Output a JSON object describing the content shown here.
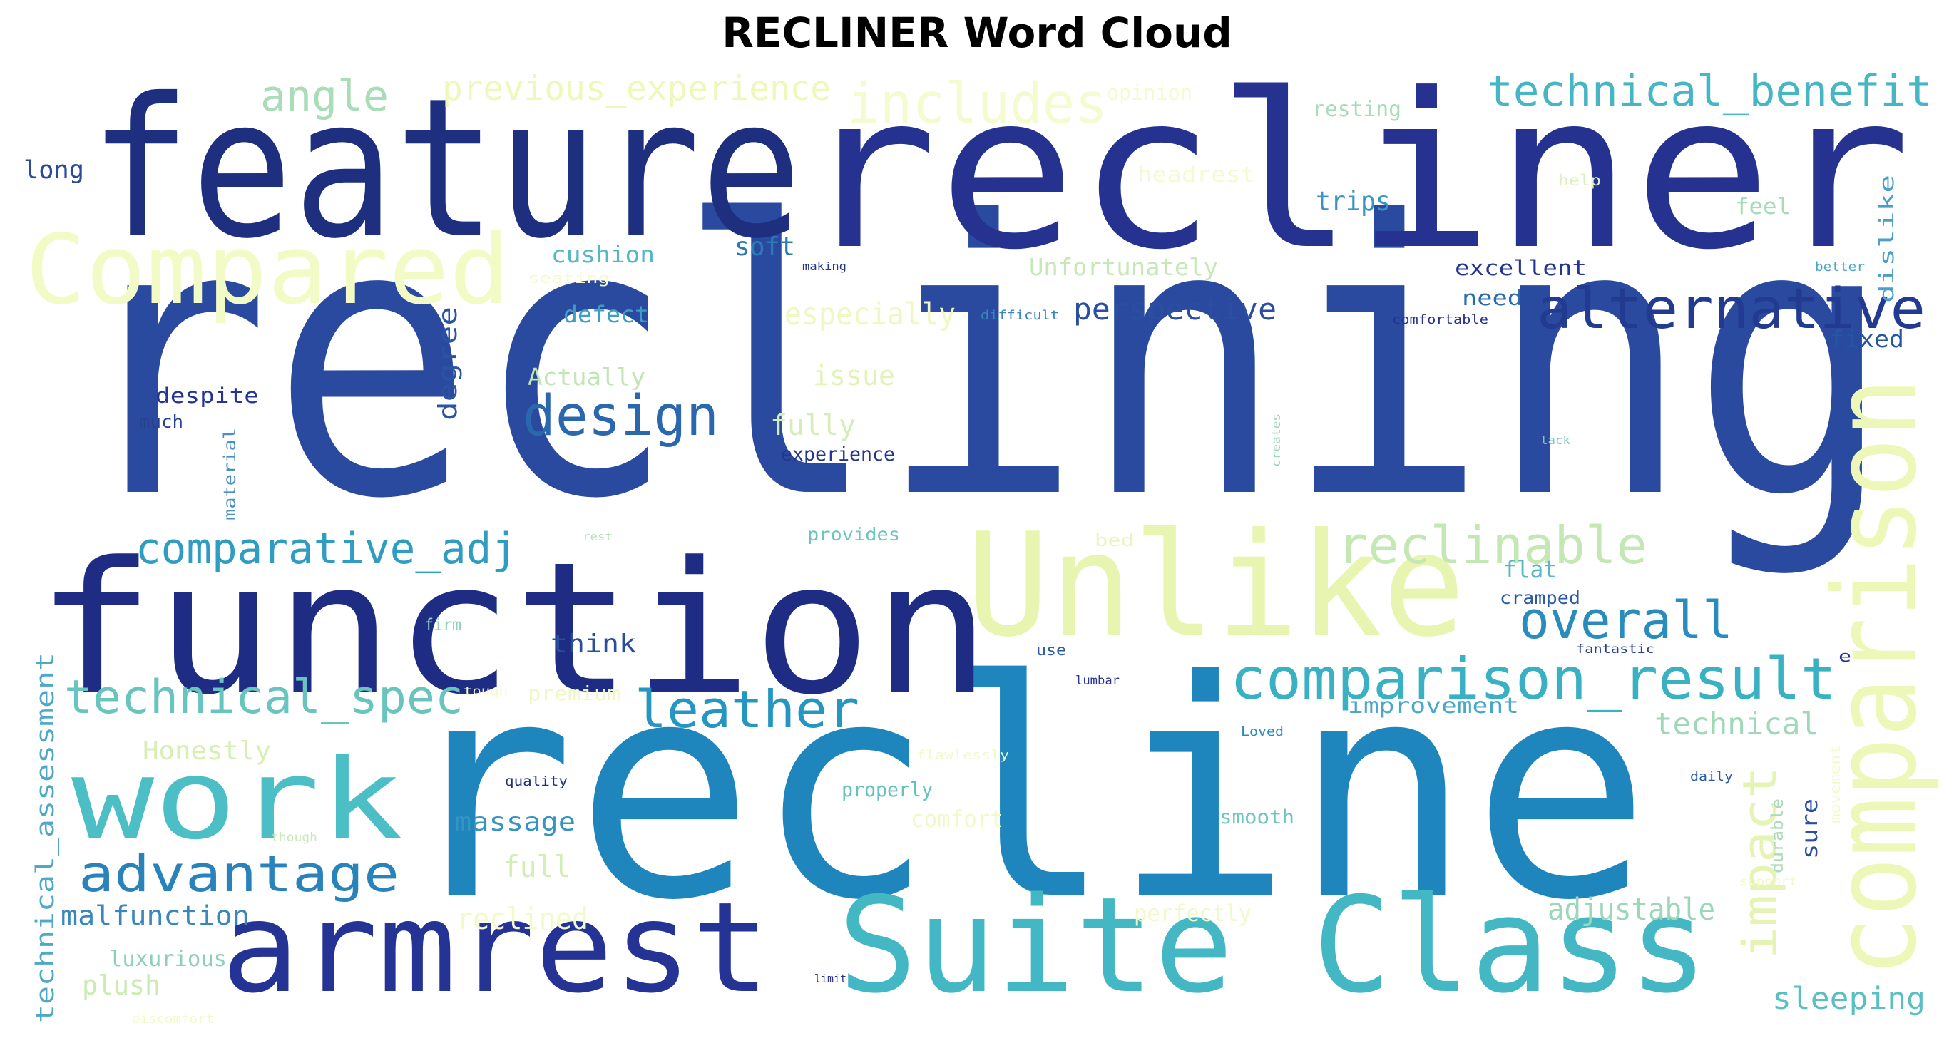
{
  "title": "RECLINER Word Cloud",
  "words": [
    {
      "text": "reclining",
      "color": "#2a4aa0"
    },
    {
      "text": "recline",
      "color": "#1f86bd"
    },
    {
      "text": "recliner",
      "color": "#25328f"
    },
    {
      "text": "feature",
      "color": "#1e2f80"
    },
    {
      "text": "function",
      "color": "#1e2c84"
    },
    {
      "text": "Unlike",
      "color": "#e8f5b0"
    },
    {
      "text": "Suite Class",
      "color": "#43b8c4"
    },
    {
      "text": "armrest",
      "color": "#253494"
    },
    {
      "text": "work",
      "color": "#4cbec5"
    },
    {
      "text": "comparison",
      "color": "#edf8b8"
    },
    {
      "text": "Compared",
      "color": "#f2fbc5"
    },
    {
      "text": "comparison_result",
      "color": "#3ab1c3"
    },
    {
      "text": "alternative",
      "color": "#223a8f"
    },
    {
      "text": "design",
      "color": "#2a67ac"
    },
    {
      "text": "includes",
      "color": "#f4fbcf"
    },
    {
      "text": "technical_benefit",
      "color": "#47b6c4"
    },
    {
      "text": "angle",
      "color": "#a9ddb7"
    },
    {
      "text": "previous_experience",
      "color": "#eef8ba"
    },
    {
      "text": "reclinable",
      "color": "#c4e8b4"
    },
    {
      "text": "overall",
      "color": "#2a8bbd"
    },
    {
      "text": "comparative_adj",
      "color": "#2f9cc2"
    },
    {
      "text": "technical_spec",
      "color": "#68c4be"
    },
    {
      "text": "leather",
      "color": "#2496c1"
    },
    {
      "text": "advantage",
      "color": "#2a82bb"
    },
    {
      "text": "impact",
      "color": "#e5f4b4"
    },
    {
      "text": "technical",
      "color": "#9ed8b8"
    },
    {
      "text": "technical_assessment",
      "color": "#4fa8c8"
    },
    {
      "text": "sleeping",
      "color": "#5bbfc1"
    },
    {
      "text": "adjustable",
      "color": "#9cd7b9"
    },
    {
      "text": "malfunction",
      "color": "#3a86bd"
    },
    {
      "text": "massage",
      "color": "#3694c2"
    },
    {
      "text": "full",
      "color": "#d2eeb5"
    },
    {
      "text": "reclined",
      "color": "#f2fac9"
    },
    {
      "text": "Honestly",
      "color": "#d6efb4"
    },
    {
      "text": "luxurious",
      "color": "#8ccfbb"
    },
    {
      "text": "plush",
      "color": "#cdeab3"
    },
    {
      "text": "perspective",
      "color": "#2a4fa0"
    },
    {
      "text": "cushion",
      "color": "#53b7c4"
    },
    {
      "text": "soft",
      "color": "#2b7ab6"
    },
    {
      "text": "Unfortunately",
      "color": "#c5e8b6"
    },
    {
      "text": "especially",
      "color": "#eff8c3"
    },
    {
      "text": "defect",
      "color": "#3e9ec4"
    },
    {
      "text": "Actually",
      "color": "#c1e6b6"
    },
    {
      "text": "issue",
      "color": "#e2f3b9"
    },
    {
      "text": "fully",
      "color": "#d4eeb8"
    },
    {
      "text": "experience",
      "color": "#26368e"
    },
    {
      "text": "despite",
      "color": "#253494"
    },
    {
      "text": "degree",
      "color": "#2a53a2"
    },
    {
      "text": "much",
      "color": "#26428f"
    },
    {
      "text": "material",
      "color": "#4c8fc2"
    },
    {
      "text": "long",
      "color": "#2c4a9a"
    },
    {
      "text": "trips",
      "color": "#3a95c3"
    },
    {
      "text": "excellent",
      "color": "#253494"
    },
    {
      "text": "need",
      "color": "#2a6bb0"
    },
    {
      "text": "feel",
      "color": "#a6dbb7"
    },
    {
      "text": "fixed",
      "color": "#2556a4"
    },
    {
      "text": "dislike",
      "color": "#4a9fc8"
    },
    {
      "text": "resting",
      "color": "#a8dbb7"
    },
    {
      "text": "think",
      "color": "#2a4e9c"
    },
    {
      "text": "provides",
      "color": "#6cc4be"
    },
    {
      "text": "flat",
      "color": "#56b9c1"
    },
    {
      "text": "cramped",
      "color": "#2a5aa4"
    },
    {
      "text": "improvement",
      "color": "#4aa8c6"
    },
    {
      "text": "properly",
      "color": "#67c2be"
    },
    {
      "text": "smooth",
      "color": "#6fc5be"
    },
    {
      "text": "quality",
      "color": "#1f2f80"
    },
    {
      "text": "sure",
      "color": "#2a4ea0"
    },
    {
      "text": "durable",
      "color": "#a8dbb8"
    },
    {
      "text": "comfort",
      "color": "#f0f9c8"
    },
    {
      "text": "perfectly",
      "color": "#f0f9c8"
    },
    {
      "text": "premium",
      "color": "#eef8c6"
    },
    {
      "text": "firm",
      "color": "#8cd0bc"
    },
    {
      "text": "use",
      "color": "#2a5aa4"
    },
    {
      "text": "lumbar",
      "color": "#253494"
    },
    {
      "text": "fantastic",
      "color": "#26408f"
    },
    {
      "text": "Loved",
      "color": "#2a8bbd"
    },
    {
      "text": "daily",
      "color": "#2a5aa4"
    },
    {
      "text": "comfortable",
      "color": "#253494"
    },
    {
      "text": "difficult",
      "color": "#3a86bd"
    },
    {
      "text": "making",
      "color": "#26368e"
    },
    {
      "text": "better",
      "color": "#4aa8c6"
    },
    {
      "text": "lack",
      "color": "#7ac9bc"
    },
    {
      "text": "creates",
      "color": "#9ed8b8"
    },
    {
      "text": "rest",
      "color": "#b8e2b6"
    },
    {
      "text": "bed",
      "color": "#eaf6c2"
    },
    {
      "text": "help",
      "color": "#dcf1bd"
    },
    {
      "text": "headrest",
      "color": "#f4fbd2"
    },
    {
      "text": "opinion",
      "color": "#f4fbd2"
    },
    {
      "text": "seating",
      "color": "#f4fbd2"
    },
    {
      "text": "movement",
      "color": "#f2fac9"
    },
    {
      "text": "support",
      "color": "#f2fac9"
    },
    {
      "text": "flawlessly",
      "color": "#f2fac9"
    },
    {
      "text": "though",
      "color": "#c9e9b6"
    },
    {
      "text": "tough",
      "color": "#f2fac9"
    },
    {
      "text": "limit",
      "color": "#26368e"
    },
    {
      "text": "discomfort",
      "color": "#f2fac9"
    },
    {
      "text": "e",
      "color": "#253494"
    }
  ]
}
